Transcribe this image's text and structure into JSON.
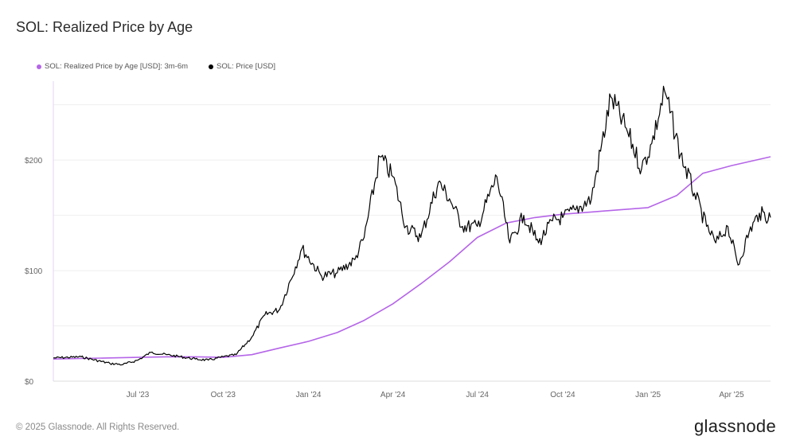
{
  "title": "SOL: Realized Price by Age",
  "footer": "© 2025 Glassnode. All Rights Reserved.",
  "logo": "glassnode",
  "legend": [
    {
      "label": "SOL: Realized Price by Age [USD]: 3m-6m",
      "color": "#b565e8"
    },
    {
      "label": "SOL: Price [USD]",
      "color": "#000000"
    }
  ],
  "chart_data": {
    "type": "line",
    "x_range": [
      "2023-04-01",
      "2025-05-13"
    ],
    "ylim": [
      0,
      280
    ],
    "y_ticks": [
      {
        "value": 0,
        "label": "$0"
      },
      {
        "value": 100,
        "label": "$100"
      },
      {
        "value": 200,
        "label": "$200"
      }
    ],
    "x_ticks": [
      {
        "date": "2023-07-01",
        "label": "Jul '23"
      },
      {
        "date": "2023-10-01",
        "label": "Oct '23"
      },
      {
        "date": "2024-01-01",
        "label": "Jan '24"
      },
      {
        "date": "2024-04-01",
        "label": "Apr '24"
      },
      {
        "date": "2024-07-01",
        "label": "Jul '24"
      },
      {
        "date": "2024-10-01",
        "label": "Oct '24"
      },
      {
        "date": "2025-01-01",
        "label": "Jan '25"
      },
      {
        "date": "2025-04-01",
        "label": "Apr '25"
      }
    ],
    "grid": true,
    "series": [
      {
        "name": "SOL: Realized Price by Age [USD]: 3m-6m",
        "color": "#b565e8",
        "points": [
          [
            "2023-04-01",
            20
          ],
          [
            "2023-05-01",
            20.5
          ],
          [
            "2023-06-01",
            21
          ],
          [
            "2023-07-01",
            21.5
          ],
          [
            "2023-08-01",
            22
          ],
          [
            "2023-09-01",
            22
          ],
          [
            "2023-10-01",
            21.5
          ],
          [
            "2023-11-01",
            24
          ],
          [
            "2023-12-01",
            30
          ],
          [
            "2024-01-01",
            36
          ],
          [
            "2024-02-01",
            44
          ],
          [
            "2024-03-01",
            55
          ],
          [
            "2024-04-01",
            70
          ],
          [
            "2024-05-01",
            88
          ],
          [
            "2024-06-01",
            108
          ],
          [
            "2024-07-01",
            130
          ],
          [
            "2024-08-01",
            143
          ],
          [
            "2024-09-01",
            148
          ],
          [
            "2024-10-01",
            151
          ],
          [
            "2024-11-01",
            153
          ],
          [
            "2024-12-01",
            155
          ],
          [
            "2025-01-01",
            157
          ],
          [
            "2025-02-01",
            168
          ],
          [
            "2025-03-01",
            188
          ],
          [
            "2025-04-01",
            195
          ],
          [
            "2025-05-13",
            203
          ]
        ]
      },
      {
        "name": "SOL: Price [USD]",
        "color": "#000000",
        "points": [
          [
            "2023-04-01",
            21
          ],
          [
            "2023-05-01",
            22
          ],
          [
            "2023-06-01",
            16
          ],
          [
            "2023-06-15",
            15
          ],
          [
            "2023-07-01",
            19
          ],
          [
            "2023-07-15",
            26
          ],
          [
            "2023-08-01",
            24
          ],
          [
            "2023-09-01",
            20
          ],
          [
            "2023-09-15",
            19
          ],
          [
            "2023-10-01",
            22
          ],
          [
            "2023-10-15",
            24
          ],
          [
            "2023-11-01",
            40
          ],
          [
            "2023-11-15",
            60
          ],
          [
            "2023-12-01",
            65
          ],
          [
            "2023-12-25",
            120
          ],
          [
            "2024-01-15",
            95
          ],
          [
            "2024-02-01",
            98
          ],
          [
            "2024-02-20",
            110
          ],
          [
            "2024-03-01",
            130
          ],
          [
            "2024-03-18",
            203
          ],
          [
            "2024-04-01",
            185
          ],
          [
            "2024-04-15",
            140
          ],
          [
            "2024-05-01",
            130
          ],
          [
            "2024-05-20",
            180
          ],
          [
            "2024-06-01",
            165
          ],
          [
            "2024-06-15",
            140
          ],
          [
            "2024-07-01",
            140
          ],
          [
            "2024-07-22",
            185
          ],
          [
            "2024-08-05",
            125
          ],
          [
            "2024-08-20",
            150
          ],
          [
            "2024-09-05",
            125
          ],
          [
            "2024-09-20",
            145
          ],
          [
            "2024-10-01",
            148
          ],
          [
            "2024-10-15",
            155
          ],
          [
            "2024-11-01",
            165
          ],
          [
            "2024-11-22",
            257
          ],
          [
            "2024-12-10",
            225
          ],
          [
            "2024-12-25",
            192
          ],
          [
            "2025-01-05",
            215
          ],
          [
            "2025-01-19",
            262
          ],
          [
            "2025-02-05",
            205
          ],
          [
            "2025-02-20",
            170
          ],
          [
            "2025-03-05",
            140
          ],
          [
            "2025-03-15",
            125
          ],
          [
            "2025-03-28",
            140
          ],
          [
            "2025-04-08",
            105
          ],
          [
            "2025-04-20",
            135
          ],
          [
            "2025-05-01",
            152
          ],
          [
            "2025-05-13",
            148
          ]
        ]
      }
    ]
  }
}
